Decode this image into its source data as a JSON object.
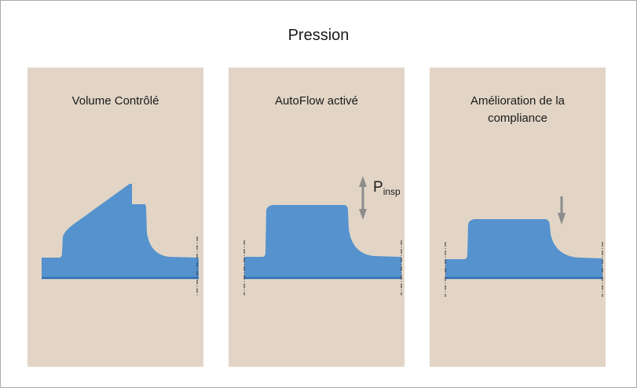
{
  "title": "Pression",
  "panels": [
    {
      "label": "Volume Contrôlé"
    },
    {
      "label": "AutoFlow activé",
      "annotation": {
        "main": "P",
        "sub": "insp"
      }
    },
    {
      "label_line1": "Amélioration de la",
      "label_line2": "compliance"
    }
  ],
  "colors": {
    "panel_background": "#e2d5c6",
    "waveform_fill": "#5592ce",
    "baseline": "#2f6fb4",
    "arrow": "#8c8c8c",
    "dash_marker": "#333333"
  },
  "icons": [
    "double-arrow-icon",
    "down-arrow-icon"
  ]
}
